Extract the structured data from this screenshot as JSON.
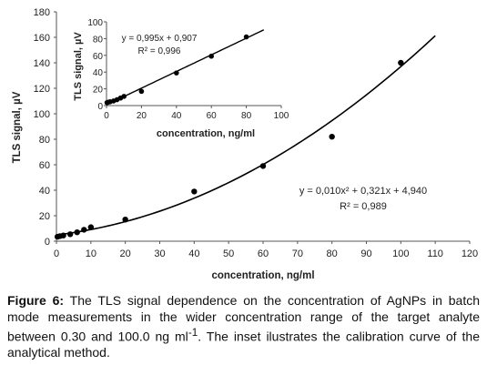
{
  "chart_data": [
    {
      "type": "scatter",
      "xlabel": "concentration, ng/ml",
      "ylabel": "TLS signal, µV",
      "xlim": [
        0,
        120
      ],
      "ylim": [
        0,
        180
      ],
      "xticks": [
        "0",
        "10",
        "20",
        "30",
        "40",
        "50",
        "60",
        "70",
        "80",
        "90",
        "100",
        "110",
        "120"
      ],
      "yticks": [
        "0",
        "20",
        "40",
        "60",
        "80",
        "100",
        "120",
        "140",
        "160",
        "180"
      ],
      "grid": false,
      "points": [
        {
          "x": 0.3,
          "y": 3.5
        },
        {
          "x": 1,
          "y": 4
        },
        {
          "x": 2,
          "y": 4.5
        },
        {
          "x": 4,
          "y": 5.5
        },
        {
          "x": 6,
          "y": 7
        },
        {
          "x": 8,
          "y": 9
        },
        {
          "x": 10,
          "y": 11
        },
        {
          "x": 20,
          "y": 17
        },
        {
          "x": 40,
          "y": 39
        },
        {
          "x": 60,
          "y": 59
        },
        {
          "x": 80,
          "y": 82
        },
        {
          "x": 100,
          "y": 140
        }
      ],
      "fit": {
        "kind": "quadratic",
        "a": 0.01,
        "b": 0.321,
        "c": 4.94,
        "x_range": [
          0,
          110
        ]
      },
      "equation": "y = 0,010x² + 0,321x + 4,940",
      "r2": "R² = 0,989"
    },
    {
      "type": "scatter",
      "inset": true,
      "xlabel": "concentration, ng/ml",
      "ylabel": "TLS signal, µV",
      "xlim": [
        0,
        100
      ],
      "ylim": [
        0,
        100
      ],
      "xticks": [
        "0",
        "20",
        "40",
        "60",
        "80",
        "100"
      ],
      "yticks": [
        "0",
        "20",
        "40",
        "60",
        "80",
        "100"
      ],
      "grid": false,
      "points": [
        {
          "x": 0.3,
          "y": 3.5
        },
        {
          "x": 1,
          "y": 4
        },
        {
          "x": 2,
          "y": 4.5
        },
        {
          "x": 4,
          "y": 5.5
        },
        {
          "x": 6,
          "y": 7
        },
        {
          "x": 8,
          "y": 9
        },
        {
          "x": 10,
          "y": 11
        },
        {
          "x": 20,
          "y": 17
        },
        {
          "x": 40,
          "y": 39
        },
        {
          "x": 60,
          "y": 59
        },
        {
          "x": 80,
          "y": 82
        }
      ],
      "fit": {
        "kind": "linear",
        "slope": 0.995,
        "intercept": 0.907,
        "x_range": [
          0,
          90
        ]
      },
      "equation": "y = 0,995x + 0,907",
      "r2": "R² = 0,996"
    }
  ],
  "caption": {
    "label": "Figure 6:",
    "text": " The TLS signal dependence on the concentration of AgNPs in batch mode measurements in the wider concentration range of the target analyte between 0.30 and 100.0 ng ml",
    "superscript": "-1",
    "text_end": ". The inset ilustrates the calibration curve of the analytical method."
  }
}
